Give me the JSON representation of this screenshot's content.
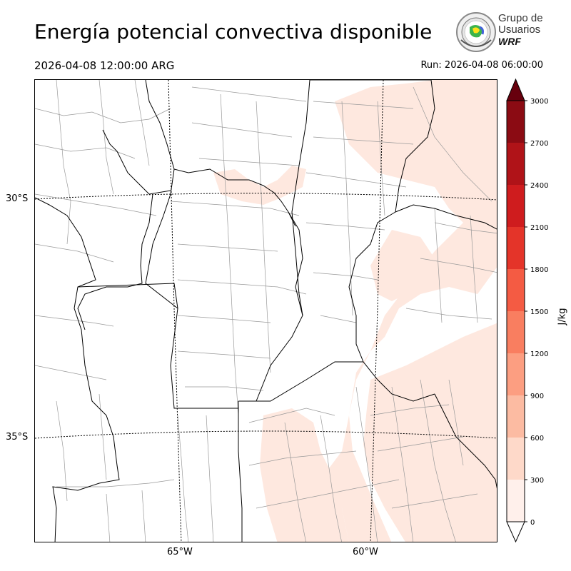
{
  "header": {
    "title": "Energía potencial convectiva disponible",
    "valid_time": "2026-04-08 12:00:00 ARG",
    "run_time": "Run: 2026-04-08 06:00:00"
  },
  "logo": {
    "line1": "Grupo de",
    "line2": "Usuarios",
    "line3": "WRF"
  },
  "map": {
    "lat_labels": [
      "30°S",
      "35°S"
    ],
    "lon_labels": [
      "65°W",
      "60°W"
    ],
    "field_color": "#fee8df",
    "border_color": "#000000",
    "district_color": "#999999"
  },
  "colorbar": {
    "unit": "J/kg",
    "ticks": [
      "0",
      "300",
      "600",
      "900",
      "1200",
      "1500",
      "1800",
      "2100",
      "2400",
      "2700",
      "3000"
    ],
    "colors": [
      "#fff0eb",
      "#fed9c9",
      "#fcbba2",
      "#fc9e81",
      "#f97e60",
      "#f45b43",
      "#e43429",
      "#cf1c1e",
      "#b01318",
      "#8b0b13",
      "#67000d"
    ]
  }
}
